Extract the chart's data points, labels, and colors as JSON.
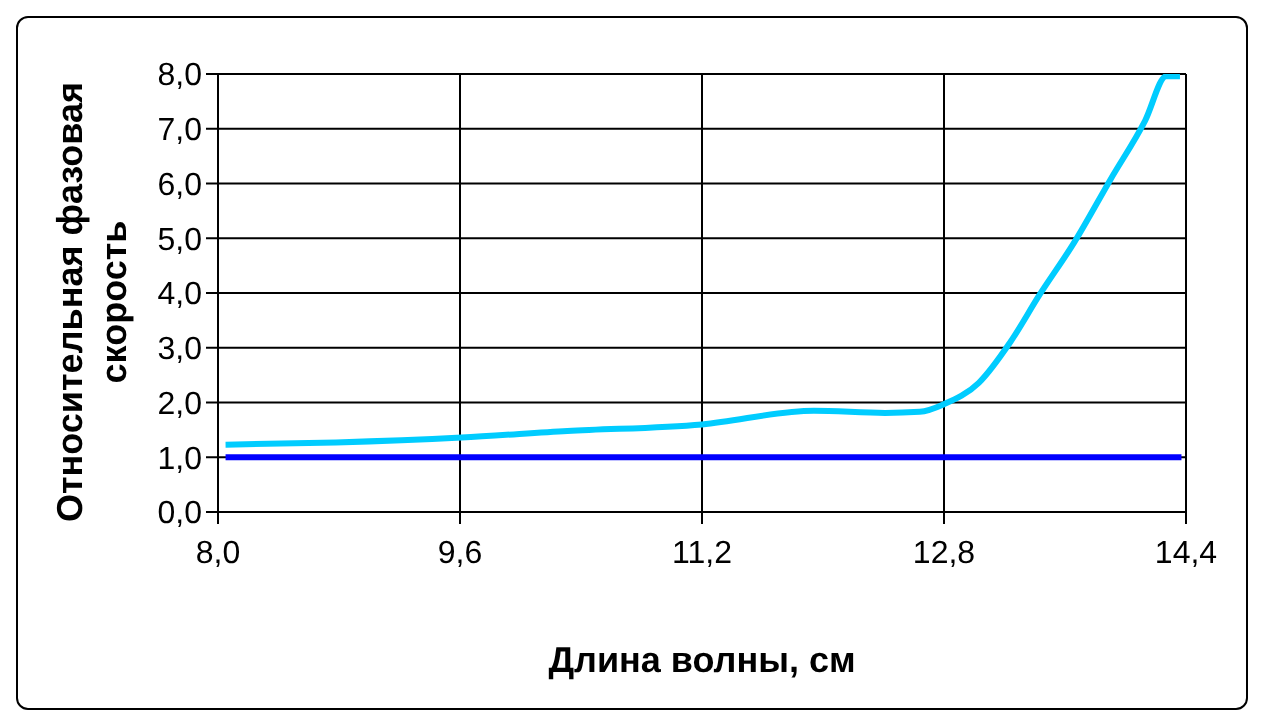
{
  "chart_data": {
    "type": "line",
    "xlabel": "Длина волны, см",
    "ylabel": "Относительная фазовая скорость",
    "xlim": [
      8.0,
      14.4
    ],
    "xticks": [
      {
        "value": 8.0,
        "label": "8,0"
      },
      {
        "value": 9.6,
        "label": "9,6"
      },
      {
        "value": 11.2,
        "label": "11,2"
      },
      {
        "value": 12.8,
        "label": "12,8"
      },
      {
        "value": 14.4,
        "label": "14,4"
      }
    ],
    "ylim": [
      0,
      8
    ],
    "yticks": [
      {
        "value": 0,
        "label": "0,0"
      },
      {
        "value": 1,
        "label": "1,0"
      },
      {
        "value": 2,
        "label": "2,0"
      },
      {
        "value": 3,
        "label": "3,0"
      },
      {
        "value": 4,
        "label": "4,0"
      },
      {
        "value": 5,
        "label": "5,0"
      },
      {
        "value": 6,
        "label": "6,0"
      },
      {
        "value": 7,
        "label": "7,0"
      },
      {
        "value": 8,
        "label": "8,0"
      }
    ],
    "grid": true,
    "series": [
      {
        "color": "#00ccff",
        "x": [
          8.05,
          8.78,
          9.61,
          10.31,
          11.2,
          11.94,
          12.41,
          12.64,
          12.8,
          13.03,
          13.24,
          13.43,
          13.66,
          13.9,
          14.13,
          14.27,
          14.36
        ],
        "values": [
          1.23,
          1.27,
          1.36,
          1.48,
          1.6,
          1.85,
          1.81,
          1.83,
          1.97,
          2.36,
          3.11,
          3.96,
          4.92,
          6.07,
          7.15,
          7.96,
          7.96
        ]
      },
      {
        "color": "#0000ff",
        "x": [
          8.05,
          14.37
        ],
        "values": [
          1.0,
          1.0
        ]
      }
    ]
  }
}
